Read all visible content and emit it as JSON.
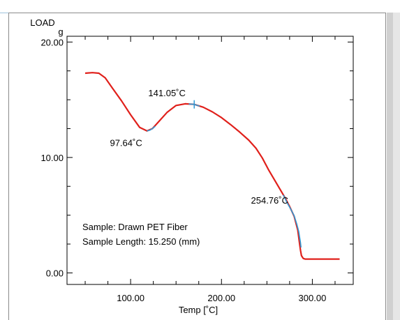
{
  "chart_data": {
    "type": "line",
    "ylabel": "LOAD",
    "yunit": "g",
    "xlabel": "Temp [˚C]",
    "xlim": [
      30,
      345
    ],
    "ylim": [
      -1,
      20.5
    ],
    "xticks": [
      {
        "value": 100,
        "label": "100.00"
      },
      {
        "value": 200,
        "label": "200.00"
      },
      {
        "value": 300,
        "label": "300.00"
      }
    ],
    "yticks": [
      {
        "value": 0,
        "label": "0.00"
      },
      {
        "value": 10,
        "label": "10.00"
      },
      {
        "value": 20,
        "label": "20.00"
      }
    ],
    "series": [
      {
        "color": "#e0201b",
        "x": [
          50,
          58,
          65,
          72,
          80,
          90,
          100,
          110,
          118,
          124,
          132,
          140,
          150,
          160,
          170,
          180,
          190,
          200,
          210,
          220,
          230,
          238,
          245,
          252,
          258,
          264,
          270,
          275,
          280,
          284,
          286,
          287,
          288,
          290,
          292,
          295,
          300,
          310,
          320,
          330
        ],
        "y": [
          17.3,
          17.35,
          17.3,
          16.9,
          16.0,
          14.9,
          13.7,
          12.6,
          12.3,
          12.5,
          13.2,
          13.9,
          14.5,
          14.65,
          14.6,
          14.35,
          13.95,
          13.45,
          12.85,
          12.2,
          11.5,
          10.8,
          9.95,
          8.9,
          8.1,
          7.3,
          6.5,
          5.75,
          4.9,
          3.7,
          2.5,
          1.95,
          1.5,
          1.25,
          1.2,
          1.2,
          1.2,
          1.2,
          1.2,
          1.2
        ]
      }
    ],
    "overlays": [
      {
        "color": "#2f9ad6",
        "x": [
          118,
          121,
          124,
          127
        ],
        "y": [
          12.3,
          12.35,
          12.5,
          12.7
        ]
      },
      {
        "color": "#2f9ad6",
        "x": [
          164,
          170,
          176
        ],
        "y": [
          14.63,
          14.6,
          14.45
        ]
      },
      {
        "color": "#2f9ad6",
        "x": [
          268,
          272,
          276,
          280,
          283,
          285,
          286,
          287,
          287.5
        ],
        "y": [
          6.75,
          6.1,
          5.55,
          4.95,
          4.2,
          3.6,
          3.1,
          2.6,
          2.2
        ]
      }
    ],
    "markers": [
      {
        "x": 170,
        "y": 14.6,
        "color": "#2f9ad6"
      }
    ],
    "annotations": [
      {
        "text": "141.05˚C",
        "x": 140,
        "y": 15.3
      },
      {
        "text": "97.64˚C",
        "x": 95,
        "y": 11.0
      },
      {
        "text": "254.76˚C",
        "x": 253,
        "y": 6.0
      }
    ],
    "notes": [
      "Sample: Drawn PET Fiber",
      "Sample Length: 15.250 (mm)"
    ]
  }
}
